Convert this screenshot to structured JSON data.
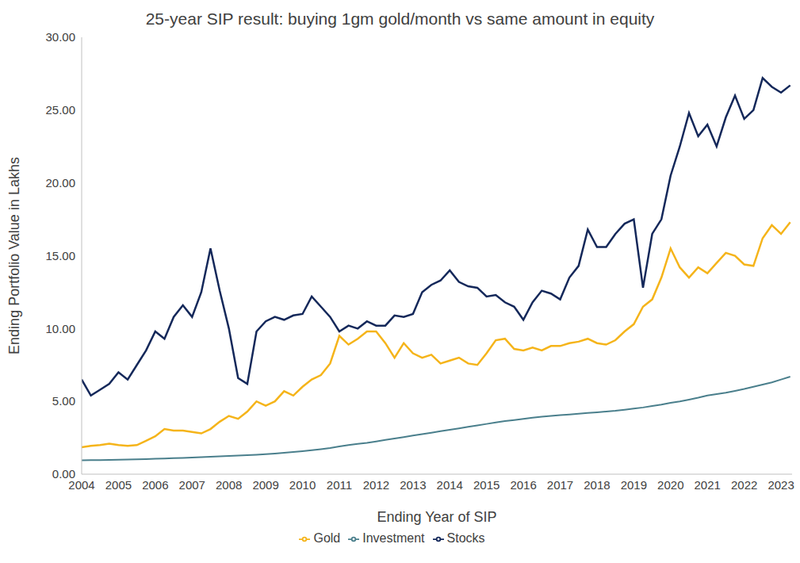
{
  "chart_data": {
    "type": "line",
    "title": "25-year SIP result: buying 1gm gold/month vs same amount in equity",
    "x_label": "Ending Year of SIP",
    "y_label": "Ending Portfolio Value in Lakhs",
    "x": [
      2004,
      2004.25,
      2004.5,
      2004.75,
      2005,
      2005.25,
      2005.5,
      2005.75,
      2006,
      2006.25,
      2006.5,
      2006.75,
      2007,
      2007.25,
      2007.5,
      2007.75,
      2008,
      2008.25,
      2008.5,
      2008.75,
      2009,
      2009.25,
      2009.5,
      2009.75,
      2010,
      2010.25,
      2010.5,
      2010.75,
      2011,
      2011.25,
      2011.5,
      2011.75,
      2012,
      2012.25,
      2012.5,
      2012.75,
      2013,
      2013.25,
      2013.5,
      2013.75,
      2014,
      2014.25,
      2014.5,
      2014.75,
      2015,
      2015.25,
      2015.5,
      2015.75,
      2016,
      2016.25,
      2016.5,
      2016.75,
      2017,
      2017.25,
      2017.5,
      2017.75,
      2018,
      2018.25,
      2018.5,
      2018.75,
      2019,
      2019.25,
      2019.5,
      2019.75,
      2020,
      2020.25,
      2020.5,
      2020.75,
      2021,
      2021.25,
      2021.5,
      2021.75,
      2022,
      2022.25,
      2022.5,
      2022.75,
      2023,
      2023.25
    ],
    "series": [
      {
        "name": "Stocks",
        "color": "#14285a",
        "values": [
          6.5,
          5.4,
          5.8,
          6.2,
          7.0,
          6.5,
          7.5,
          8.5,
          9.8,
          9.3,
          10.8,
          11.6,
          10.8,
          12.5,
          15.5,
          12.6,
          10.0,
          6.6,
          6.2,
          9.8,
          10.5,
          10.8,
          10.6,
          10.9,
          11.0,
          12.2,
          11.5,
          10.8,
          9.8,
          10.2,
          10.0,
          10.5,
          10.2,
          10.2,
          10.9,
          10.8,
          11.0,
          12.5,
          13.0,
          13.3,
          14.0,
          13.2,
          12.9,
          12.8,
          12.2,
          12.3,
          11.8,
          11.5,
          10.6,
          11.8,
          12.6,
          12.4,
          12.0,
          13.5,
          14.3,
          16.8,
          15.6,
          15.6,
          16.5,
          17.2,
          17.5,
          12.8,
          16.5,
          17.5,
          20.5,
          22.5,
          24.8,
          23.2,
          24.0,
          22.5,
          24.5,
          26.0,
          24.4,
          25.0,
          27.2,
          26.6,
          26.2,
          26.7
        ]
      },
      {
        "name": "Gold",
        "color": "#f5b41a",
        "values": [
          1.85,
          1.95,
          2.0,
          2.1,
          2.0,
          1.95,
          2.0,
          2.3,
          2.6,
          3.1,
          3.0,
          3.0,
          2.9,
          2.8,
          3.1,
          3.6,
          4.0,
          3.8,
          4.3,
          5.0,
          4.7,
          5.0,
          5.7,
          5.4,
          6.0,
          6.5,
          6.8,
          7.6,
          9.5,
          8.9,
          9.3,
          9.8,
          9.8,
          9.0,
          8.0,
          9.0,
          8.3,
          8.0,
          8.2,
          7.6,
          7.8,
          8.0,
          7.6,
          7.5,
          8.3,
          9.2,
          9.3,
          8.6,
          8.5,
          8.7,
          8.5,
          8.8,
          8.8,
          9.0,
          9.1,
          9.3,
          9.0,
          8.9,
          9.2,
          9.8,
          10.3,
          11.5,
          12.0,
          13.5,
          15.5,
          14.2,
          13.5,
          14.2,
          13.8,
          14.5,
          15.2,
          15.0,
          14.4,
          14.3,
          16.2,
          17.1,
          16.5,
          17.3
        ]
      },
      {
        "name": "Investment",
        "color": "#4a7f8c",
        "values": [
          0.95,
          0.96,
          0.97,
          0.98,
          1.0,
          1.01,
          1.02,
          1.04,
          1.06,
          1.08,
          1.1,
          1.12,
          1.15,
          1.17,
          1.2,
          1.22,
          1.25,
          1.28,
          1.3,
          1.33,
          1.37,
          1.42,
          1.47,
          1.52,
          1.58,
          1.65,
          1.72,
          1.8,
          1.9,
          2.0,
          2.08,
          2.15,
          2.25,
          2.35,
          2.45,
          2.55,
          2.65,
          2.75,
          2.85,
          2.95,
          3.05,
          3.15,
          3.25,
          3.35,
          3.45,
          3.55,
          3.65,
          3.72,
          3.8,
          3.88,
          3.95,
          4.0,
          4.05,
          4.1,
          4.15,
          4.2,
          4.25,
          4.3,
          4.35,
          4.42,
          4.5,
          4.58,
          4.68,
          4.78,
          4.9,
          5.0,
          5.12,
          5.25,
          5.4,
          5.5,
          5.6,
          5.72,
          5.85,
          6.0,
          6.15,
          6.3,
          6.5,
          6.7
        ]
      }
    ],
    "xlim": [
      2004,
      2023.3
    ],
    "xticks": [
      2004,
      2005,
      2006,
      2007,
      2008,
      2009,
      2010,
      2011,
      2012,
      2013,
      2014,
      2015,
      2016,
      2017,
      2018,
      2019,
      2020,
      2021,
      2022,
      2023
    ],
    "ylim": [
      0,
      30
    ],
    "yticks": [
      {
        "value": 0,
        "label": "0.00"
      },
      {
        "value": 5,
        "label": "5.00"
      },
      {
        "value": 10,
        "label": "10.00"
      },
      {
        "value": 15,
        "label": "15.00"
      },
      {
        "value": 20,
        "label": "20.00"
      },
      {
        "value": 25,
        "label": "25.00"
      },
      {
        "value": 30,
        "label": "30.00"
      }
    ],
    "grid": false,
    "legend": "bottom"
  }
}
